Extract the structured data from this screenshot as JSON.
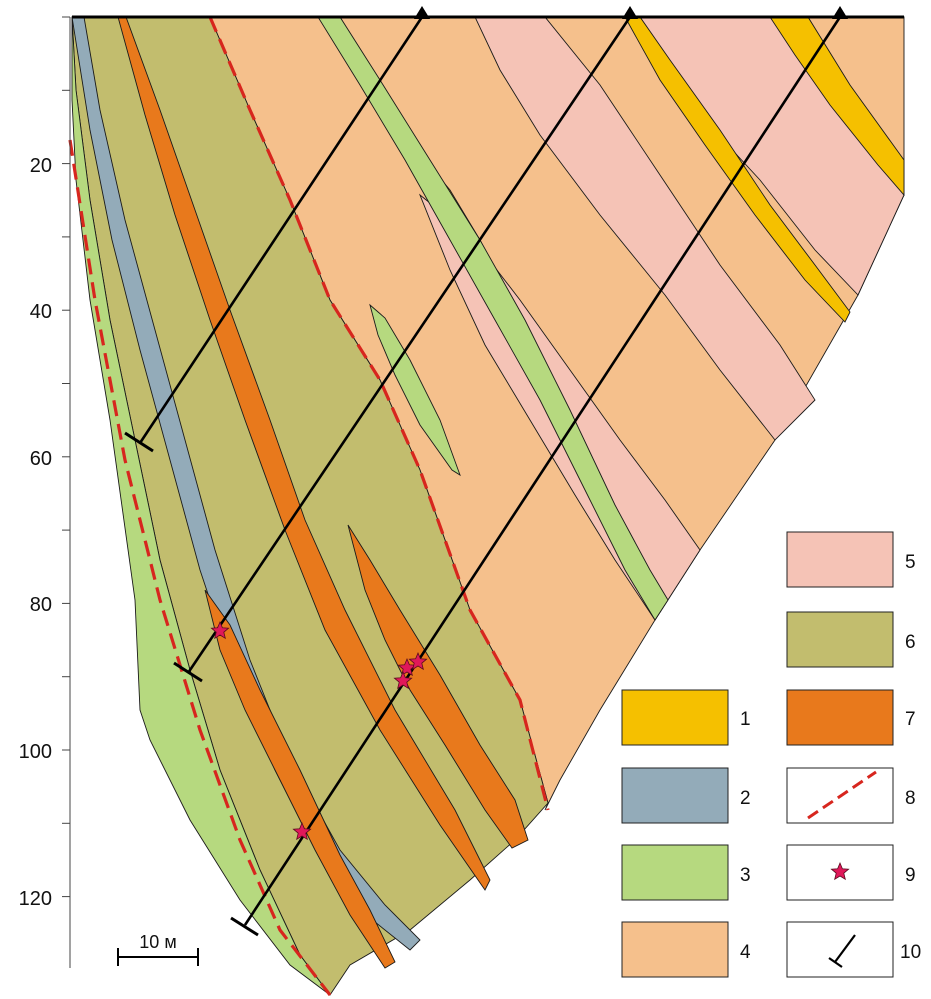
{
  "depth_axis": {
    "tick_labels": [
      "20",
      "40",
      "60",
      "80",
      "100",
      "120"
    ]
  },
  "scale_bar": {
    "label": "10 м"
  },
  "legend": [
    {
      "number": "1",
      "color": "#f5c000",
      "kind": "swatch"
    },
    {
      "number": "2",
      "color": "#93abb9",
      "kind": "swatch"
    },
    {
      "number": "3",
      "color": "#b6d97f",
      "kind": "swatch"
    },
    {
      "number": "4",
      "color": "#f5c08c",
      "kind": "swatch"
    },
    {
      "number": "5",
      "color": "#f5c3b6",
      "kind": "swatch"
    },
    {
      "number": "6",
      "color": "#c2bd6e",
      "kind": "swatch"
    },
    {
      "number": "7",
      "color": "#e8791c",
      "kind": "swatch"
    },
    {
      "number": "8",
      "color": "#d7261e",
      "kind": "fault-line-symbol"
    },
    {
      "number": "9",
      "color": "#e0185a",
      "kind": "star-symbol"
    },
    {
      "number": "10",
      "color": "#000000",
      "kind": "borehole-symbol"
    }
  ]
}
